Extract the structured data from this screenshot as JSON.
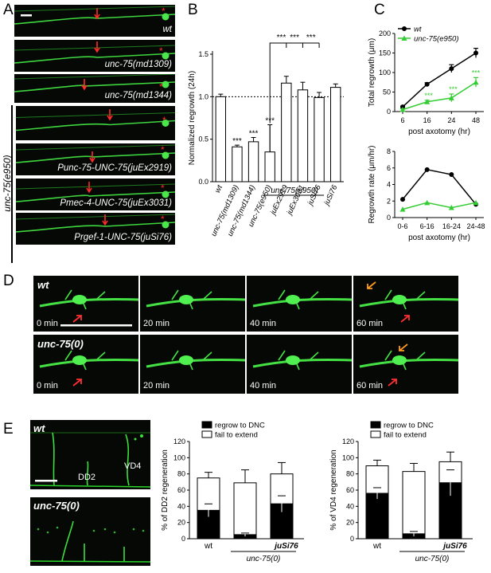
{
  "panels": {
    "A": "A",
    "B": "B",
    "C": "C",
    "D": "D",
    "E": "E"
  },
  "panelA": {
    "images": [
      {
        "label": "wt"
      },
      {
        "label": "unc-75(md1309)"
      },
      {
        "label": "unc-75(md1344)"
      },
      {
        "label": ""
      },
      {
        "label": "Punc-75-UNC-75(juEx2919)"
      },
      {
        "label": "Pmec-4-UNC-75(juEx3031)"
      },
      {
        "label": "Prgef-1-UNC-75(juSi76)"
      }
    ],
    "group_label": "unc-75(e950)"
  },
  "panelB": {
    "chart_data": {
      "type": "bar",
      "categories": [
        "wt",
        "unc-75(md1309)",
        "unc-75(md1344)",
        "unc-75(e950)",
        "juEx2919",
        "juEx3031",
        "juSi76",
        "juSi76"
      ],
      "values": [
        1.0,
        0.41,
        0.47,
        0.35,
        1.16,
        1.08,
        0.99,
        1.11
      ],
      "errors": [
        0.03,
        0.02,
        0.05,
        0.32,
        0.08,
        0.09,
        0.06,
        0.04
      ],
      "significance": [
        "",
        "***",
        "***",
        "***",
        "***",
        "***",
        "***",
        ""
      ],
      "ylabel": "Normalized regrowth (24h)",
      "yticks": [
        "0.0",
        "0.5",
        "1.0",
        "1.5"
      ],
      "ylim": [
        0,
        1.5
      ],
      "group_label": "unc-75(e950)",
      "reference_line": 1.0
    }
  },
  "panelC": {
    "chart_data": [
      {
        "type": "line",
        "x": [
          "6",
          "16",
          "24",
          "48"
        ],
        "series": [
          {
            "name": "wt",
            "values": [
              12,
              70,
              110,
              150
            ],
            "errors": [
              2,
              4,
              10,
              12
            ],
            "color": "#000000"
          },
          {
            "name": "unc-75(e950)",
            "values": [
              5,
              25,
              35,
              75
            ],
            "errors": [
              2,
              4,
              10,
              12
            ],
            "color": "#33cc33"
          }
        ],
        "significance": [
          "",
          "***",
          "***",
          "***"
        ],
        "ylabel": "Total regrowth (μm)",
        "xlabel": "post axotomy (hr)",
        "yticks": [
          "0",
          "50",
          "100",
          "150",
          "200"
        ],
        "ylim": [
          0,
          200
        ]
      },
      {
        "type": "line",
        "x": [
          "0-6",
          "6-16",
          "16-24",
          "24-48"
        ],
        "series": [
          {
            "name": "wt",
            "values": [
              2.2,
              5.8,
              5.2,
              1.6
            ],
            "color": "#000000"
          },
          {
            "name": "unc-75(e950)",
            "values": [
              1.0,
              1.8,
              1.2,
              1.8
            ],
            "color": "#33cc33"
          }
        ],
        "ylabel": "Regrowth rate (μm/hr)",
        "xlabel": "post axotomy (hr)",
        "yticks": [
          "0",
          "2",
          "4",
          "6",
          "8"
        ],
        "ylim": [
          0,
          8
        ]
      }
    ]
  },
  "panelD": {
    "rows": [
      {
        "label": "wt",
        "times": [
          "0 min",
          "20 min",
          "40 min",
          "60 min"
        ]
      },
      {
        "label": "unc-75(0)",
        "times": [
          "0 min",
          "20 min",
          "40 min",
          "60 min"
        ]
      }
    ]
  },
  "panelE": {
    "images": [
      {
        "label": "wt",
        "sublabels": [
          "DD2",
          "VD4"
        ]
      },
      {
        "label": "unc-75(0)"
      }
    ],
    "legend": {
      "regrow": "regrow to DNC",
      "fail": "fail to extend"
    },
    "chart_data": [
      {
        "type": "bar",
        "stacked": true,
        "categories": [
          "wt",
          "",
          "juSi76"
        ],
        "group_label": "unc-75(0)",
        "series": [
          {
            "name": "regrow to DNC",
            "values": [
              35,
              5,
              43
            ],
            "errors": [
              8,
              2,
              10
            ],
            "color": "#000000"
          },
          {
            "name": "fail to extend",
            "values": [
              40,
              64,
              37
            ],
            "errors": [
              7,
              16,
              14
            ],
            "color": "#ffffff"
          }
        ],
        "significance": [
          "",
          "***",
          ""
        ],
        "ylabel": "% of DD2 regeneration",
        "yticks": [
          "0",
          "20",
          "40",
          "60",
          "80",
          "100",
          "120"
        ],
        "ylim": [
          0,
          120
        ]
      },
      {
        "type": "bar",
        "stacked": true,
        "categories": [
          "wt",
          "",
          "juSi76"
        ],
        "group_label": "unc-75(0)",
        "series": [
          {
            "name": "regrow to DNC",
            "values": [
              56,
              6,
              69
            ],
            "errors": [
              7,
              3,
              16
            ],
            "color": "#000000"
          },
          {
            "name": "fail to extend",
            "values": [
              34,
              77,
              26
            ],
            "errors": [
              7,
              10,
              12
            ],
            "color": "#ffffff"
          }
        ],
        "significance": [
          "",
          "***",
          ""
        ],
        "ylabel": "% of VD4 regeneration",
        "yticks": [
          "0",
          "20",
          "40",
          "60",
          "80",
          "100",
          "120"
        ],
        "ylim": [
          0,
          120
        ]
      }
    ]
  }
}
